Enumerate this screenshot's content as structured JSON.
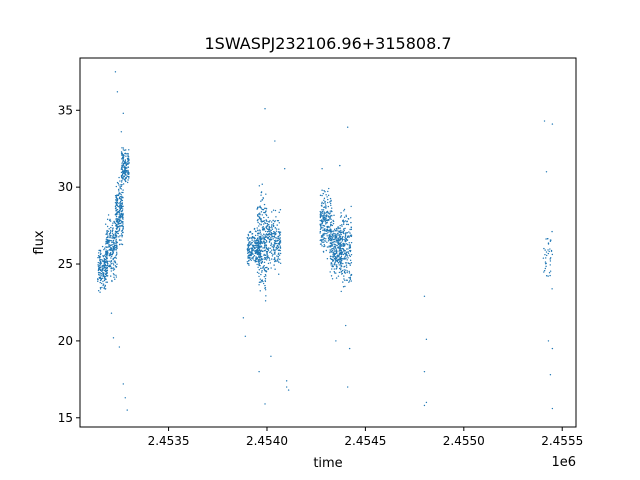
{
  "chart_data": {
    "type": "scatter",
    "title": "1SWASPJ232106.96+315808.7",
    "xlabel": "time",
    "ylabel": "flux",
    "x_offset_label": "1e6",
    "xlim": [
      2.45305,
      2.45557
    ],
    "ylim": [
      14.4,
      38.4
    ],
    "x_ticks": [
      2.4535,
      2.454,
      2.4545,
      2.455,
      2.4555
    ],
    "x_tick_labels": [
      "2.4535",
      "2.4540",
      "2.4545",
      "2.4550",
      "2.4555"
    ],
    "y_ticks": [
      15,
      20,
      25,
      30,
      35
    ],
    "y_tick_labels": [
      "15",
      "20",
      "25",
      "30",
      "35"
    ],
    "grid": false,
    "marker_color": "#1f77b4",
    "series": [
      {
        "clusters": [
          {
            "x": [
              2.45314,
              2.45319
            ],
            "y": [
              22.8,
              26.5
            ],
            "n": 180
          },
          {
            "x": [
              2.45318,
              2.45324
            ],
            "y": [
              23.5,
              28.8
            ],
            "n": 240
          },
          {
            "x": [
              2.45323,
              2.45327
            ],
            "y": [
              25.5,
              31.0
            ],
            "n": 220
          },
          {
            "x": [
              2.45326,
              2.4533
            ],
            "y": [
              29.5,
              33.0
            ],
            "n": 160
          },
          {
            "x": [
              2.4539,
              2.45397
            ],
            "y": [
              24.5,
              27.5
            ],
            "n": 220
          },
          {
            "x": [
              2.45395,
              2.454
            ],
            "y": [
              21.5,
              31.5
            ],
            "n": 260
          },
          {
            "x": [
              2.454,
              2.45407
            ],
            "y": [
              24.0,
              29.0
            ],
            "n": 220
          },
          {
            "x": [
              2.45427,
              2.45433
            ],
            "y": [
              25.0,
              30.5
            ],
            "n": 220
          },
          {
            "x": [
              2.45432,
              2.45438
            ],
            "y": [
              23.5,
              28.5
            ],
            "n": 260
          },
          {
            "x": [
              2.45437,
              2.45443
            ],
            "y": [
              22.5,
              29.5
            ],
            "n": 220
          },
          {
            "x": [
              2.4554,
              2.45545
            ],
            "y": [
              22.5,
              28.5
            ],
            "n": 40
          }
        ],
        "points": [
          [
            2.45323,
            37.5
          ],
          [
            2.45324,
            36.2
          ],
          [
            2.45327,
            34.8
          ],
          [
            2.45326,
            33.6
          ],
          [
            2.45322,
            20.2
          ],
          [
            2.45325,
            19.6
          ],
          [
            2.45328,
            16.3
          ],
          [
            2.45329,
            15.5
          ],
          [
            2.45327,
            17.2
          ],
          [
            2.45321,
            21.8
          ],
          [
            2.45399,
            35.1
          ],
          [
            2.45404,
            33.0
          ],
          [
            2.45409,
            31.2
          ],
          [
            2.45388,
            21.5
          ],
          [
            2.45389,
            20.3
          ],
          [
            2.45396,
            18.0
          ],
          [
            2.45399,
            15.9
          ],
          [
            2.45402,
            19.0
          ],
          [
            2.4541,
            17.4
          ],
          [
            2.45411,
            16.8
          ],
          [
            2.4541,
            17.0
          ],
          [
            2.45441,
            33.9
          ],
          [
            2.45437,
            31.4
          ],
          [
            2.45428,
            31.2
          ],
          [
            2.4544,
            21.0
          ],
          [
            2.45442,
            19.5
          ],
          [
            2.45441,
            17.0
          ],
          [
            2.45435,
            20.0
          ],
          [
            2.4548,
            22.9
          ],
          [
            2.45481,
            20.1
          ],
          [
            2.4548,
            18.0
          ],
          [
            2.45481,
            16.0
          ],
          [
            2.4548,
            15.8
          ],
          [
            2.45541,
            34.3
          ],
          [
            2.45545,
            34.1
          ],
          [
            2.45542,
            31.0
          ],
          [
            2.45543,
            20.0
          ],
          [
            2.45545,
            19.5
          ],
          [
            2.45544,
            17.8
          ],
          [
            2.45545,
            15.6
          ]
        ]
      }
    ]
  }
}
